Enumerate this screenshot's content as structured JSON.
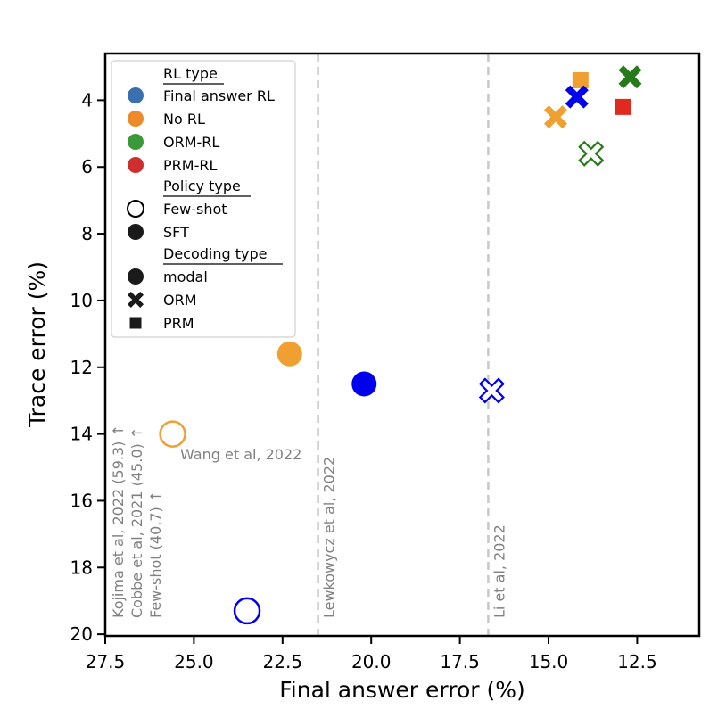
{
  "chart_data": {
    "type": "scatter",
    "xlabel": "Final answer error (%)",
    "ylabel": "Trace error (%)",
    "xlim": [
      27.5,
      10.75
    ],
    "ylim": [
      20.05,
      2.6
    ],
    "x_inverted": true,
    "y_inverted": true,
    "xticks": [
      27.5,
      25.0,
      22.5,
      20.0,
      17.5,
      15.0,
      12.5
    ],
    "xtick_labels": [
      "27.5",
      "25.0",
      "22.5",
      "20.0",
      "17.5",
      "15.0",
      "12.5"
    ],
    "yticks": [
      4,
      6,
      8,
      10,
      12,
      14,
      16,
      18,
      20
    ],
    "ytick_labels": [
      "4",
      "6",
      "8",
      "10",
      "12",
      "14",
      "16",
      "18",
      "20"
    ],
    "grid": false,
    "legend_position": "top-left",
    "colors": {
      "final_answer_rl": "#0000ee",
      "final_answer_rl_legend": "#3a6fb0",
      "no_rl": "#f0a030",
      "no_rl_legend": "#ef8a2b",
      "orm_rl": "#267a1a",
      "orm_rl_legend": "#3a9a3a",
      "prm_rl": "#e02a20",
      "prm_rl_legend": "#cf2e2e",
      "reference_line": "#c8c8c8",
      "annotation": "#808080"
    },
    "points": [
      {
        "x": 23.5,
        "y": 19.3,
        "rl": "final_answer_rl",
        "policy": "few-shot",
        "decoding": "modal"
      },
      {
        "x": 25.6,
        "y": 14.0,
        "rl": "no_rl",
        "policy": "few-shot",
        "decoding": "modal"
      },
      {
        "x": 22.3,
        "y": 11.6,
        "rl": "no_rl",
        "policy": "sft",
        "decoding": "modal"
      },
      {
        "x": 20.2,
        "y": 12.5,
        "rl": "final_answer_rl",
        "policy": "sft",
        "decoding": "modal"
      },
      {
        "x": 16.6,
        "y": 12.7,
        "rl": "final_answer_rl",
        "policy": "few-shot",
        "decoding": "orm"
      },
      {
        "x": 14.8,
        "y": 4.5,
        "rl": "no_rl",
        "policy": "sft",
        "decoding": "orm"
      },
      {
        "x": 14.1,
        "y": 3.4,
        "rl": "no_rl",
        "policy": "sft",
        "decoding": "prm"
      },
      {
        "x": 14.2,
        "y": 3.9,
        "rl": "final_answer_rl",
        "policy": "sft",
        "decoding": "orm"
      },
      {
        "x": 13.8,
        "y": 5.6,
        "rl": "orm_rl",
        "policy": "few-shot",
        "decoding": "orm"
      },
      {
        "x": 12.7,
        "y": 3.3,
        "rl": "orm_rl",
        "policy": "sft",
        "decoding": "orm"
      },
      {
        "x": 12.9,
        "y": 4.2,
        "rl": "prm_rl",
        "policy": "sft",
        "decoding": "prm"
      }
    ],
    "reference_lines": [
      {
        "x": 21.5,
        "label": "Lewkowycz et al, 2022"
      },
      {
        "x": 16.7,
        "label": "Li et al, 2022"
      }
    ],
    "annotations": {
      "wang": "Wang et al, 2022",
      "offscale": [
        "Kojima et al, 2022 (59.3) ↑",
        "Cobbe et al, 2021 (45.0) ↑",
        "Few-shot (40.7) ↑"
      ]
    },
    "legend": {
      "rl_title": "RL type",
      "rl_items": [
        {
          "label": "Final answer RL",
          "key": "final_answer_rl_legend"
        },
        {
          "label": "No RL",
          "key": "no_rl_legend"
        },
        {
          "label": "ORM-RL",
          "key": "orm_rl_legend"
        },
        {
          "label": "PRM-RL",
          "key": "prm_rl_legend"
        }
      ],
      "policy_title": "Policy type",
      "policy_items": [
        {
          "label": "Few-shot",
          "marker": "hollow-circle"
        },
        {
          "label": "SFT",
          "marker": "filled-circle"
        }
      ],
      "decoding_title": "Decoding type",
      "decoding_items": [
        {
          "label": "modal",
          "marker": "circle"
        },
        {
          "label": "ORM",
          "marker": "cross"
        },
        {
          "label": "PRM",
          "marker": "square"
        }
      ]
    }
  }
}
